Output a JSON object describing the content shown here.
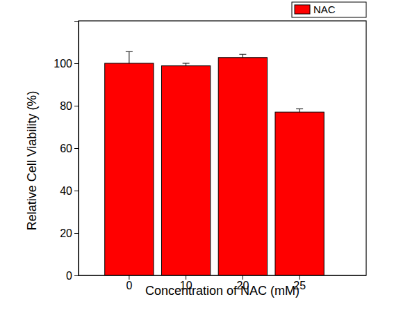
{
  "chart_data": {
    "type": "bar",
    "x_label": "Concentration of NAC (mM)",
    "y_label": "Relative Cell Viability (%)",
    "categories": [
      "0",
      "10",
      "20",
      "25"
    ],
    "series": [
      {
        "name": "NAC",
        "color": "#ff0000",
        "values": [
          100,
          98.8,
          102.7,
          77
        ],
        "errors": [
          5.5,
          1.2,
          1.5,
          1.5
        ]
      }
    ],
    "ylim": [
      0,
      120
    ],
    "yticks": [
      0,
      20,
      40,
      60,
      80,
      100
    ],
    "grid": false,
    "legend": "top-right"
  }
}
